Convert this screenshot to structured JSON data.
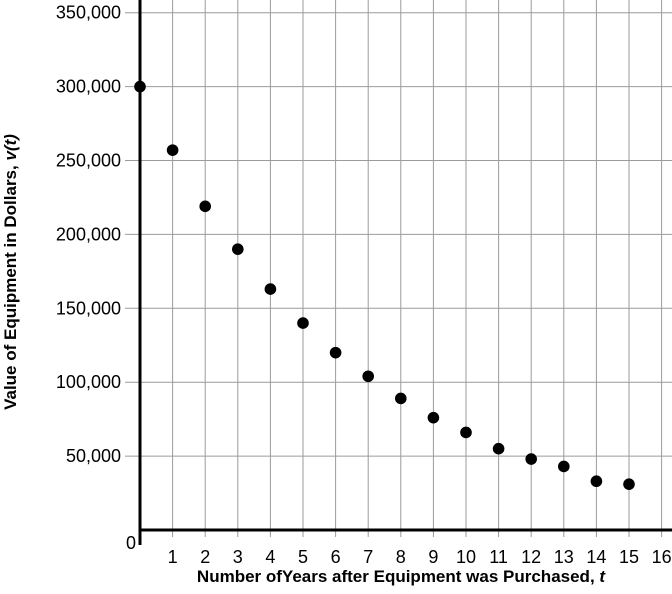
{
  "chart_data": {
    "type": "scatter",
    "title": "",
    "xlabel": "Number ofYears after Equipment was Purchased, ",
    "xlabel_var": "t",
    "ylabel": "Value of Equipment in Dollars, ",
    "ylabel_var": "v(t)",
    "points": [
      {
        "t": 0,
        "v": 300000
      },
      {
        "t": 1,
        "v": 257000
      },
      {
        "t": 2,
        "v": 219000
      },
      {
        "t": 3,
        "v": 190000
      },
      {
        "t": 4,
        "v": 163000
      },
      {
        "t": 5,
        "v": 140000
      },
      {
        "t": 6,
        "v": 120000
      },
      {
        "t": 7,
        "v": 104000
      },
      {
        "t": 8,
        "v": 89000
      },
      {
        "t": 9,
        "v": 76000
      },
      {
        "t": 10,
        "v": 66000
      },
      {
        "t": 11,
        "v": 55000
      },
      {
        "t": 12,
        "v": 48000
      },
      {
        "t": 13,
        "v": 43000
      },
      {
        "t": 14,
        "v": 33000
      },
      {
        "t": 15,
        "v": 31000
      }
    ],
    "x_ticks": [
      {
        "value": 1,
        "label": "1"
      },
      {
        "value": 2,
        "label": "2"
      },
      {
        "value": 3,
        "label": "3"
      },
      {
        "value": 4,
        "label": "4"
      },
      {
        "value": 5,
        "label": "5"
      },
      {
        "value": 6,
        "label": "6"
      },
      {
        "value": 7,
        "label": "7"
      },
      {
        "value": 8,
        "label": "8"
      },
      {
        "value": 9,
        "label": "9"
      },
      {
        "value": 10,
        "label": "10"
      },
      {
        "value": 11,
        "label": "11"
      },
      {
        "value": 12,
        "label": "12"
      },
      {
        "value": 13,
        "label": "13"
      },
      {
        "value": 14,
        "label": "14"
      },
      {
        "value": 15,
        "label": "15"
      },
      {
        "value": 16,
        "label": "16"
      }
    ],
    "y_ticks": [
      {
        "value": 350000,
        "label": "350,000"
      },
      {
        "value": 300000,
        "label": "300,000"
      },
      {
        "value": 250000,
        "label": "250,000"
      },
      {
        "value": 200000,
        "label": "200,000"
      },
      {
        "value": 150000,
        "label": "150,000"
      },
      {
        "value": 100000,
        "label": "100,000"
      },
      {
        "value": 50000,
        "label": "50,000"
      }
    ],
    "origin_label": "0",
    "xlim": [
      0,
      16
    ],
    "ylim": [
      0,
      360000
    ],
    "grid": true,
    "legend": false,
    "colors": {
      "point": "#000000",
      "axis": "#000000",
      "grid": "#9b9b9b",
      "text": "#000000",
      "background": "#ffffff"
    }
  }
}
